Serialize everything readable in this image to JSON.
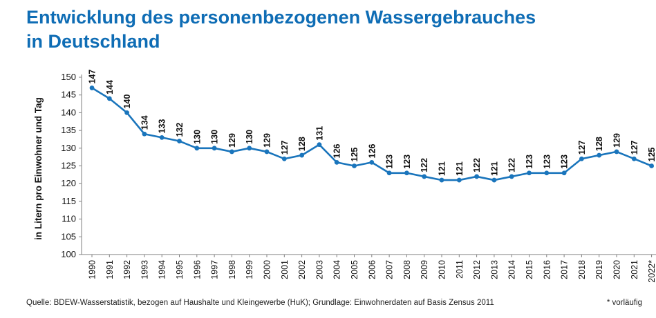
{
  "header": {
    "title_line1": "Entwicklung des personenbezogenen Wassergebrauches",
    "title_line2": "in Deutschland"
  },
  "footer": {
    "source": "Quelle: BDEW-Wasserstatistik, bezogen auf Haushalte und Kleingewerbe (HuK); Grundlage: Einwohnerdaten auf Basis Zensus 2011",
    "footnote": "* vorläufig"
  },
  "chart_data": {
    "type": "line",
    "ylabel": "in Litern pro Einwohner und Tag",
    "xlabel": "",
    "ylim": [
      100,
      150
    ],
    "yticks": [
      100,
      105,
      110,
      115,
      120,
      125,
      130,
      135,
      140,
      145,
      150
    ],
    "grid": false,
    "legend": "none",
    "color": "#1a75bc",
    "categories": [
      "1990",
      "1991",
      "1992",
      "1993",
      "1994",
      "1995",
      "1996",
      "1997",
      "1998",
      "1999",
      "2000",
      "2001",
      "2002",
      "2003",
      "2004",
      "2005",
      "2006",
      "2007",
      "2008",
      "2009",
      "2010",
      "2011",
      "2012",
      "2013",
      "2014",
      "2015",
      "2016",
      "2017",
      "2018",
      "2019",
      "2020",
      "2021",
      "2022*"
    ],
    "values": [
      147,
      144,
      140,
      134,
      133,
      132,
      130,
      130,
      129,
      130,
      129,
      127,
      128,
      131,
      126,
      125,
      126,
      123,
      123,
      122,
      121,
      121,
      122,
      121,
      122,
      123,
      123,
      123,
      127,
      128,
      129,
      127,
      125
    ]
  }
}
